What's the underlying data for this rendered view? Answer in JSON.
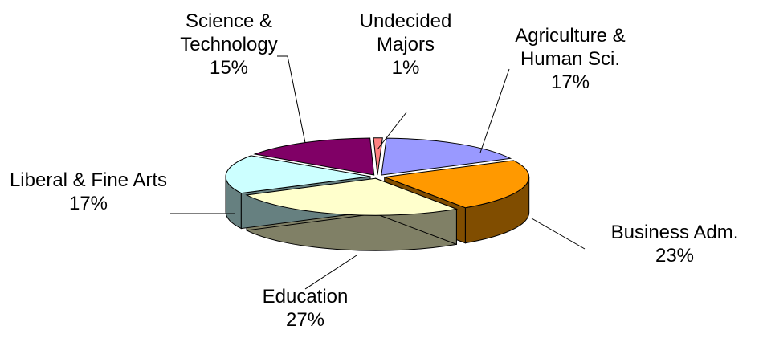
{
  "chart_data": {
    "type": "pie3d",
    "categories": [
      "Agriculture & Human Sci.",
      "Business Adm.",
      "Education",
      "Liberal & Fine Arts",
      "Science & Technology",
      "Undecided Majors"
    ],
    "values": [
      17,
      23,
      27,
      17,
      15,
      1
    ],
    "value_labels": [
      "17%",
      "23%",
      "27%",
      "17%",
      "15%",
      "1%"
    ],
    "colors": [
      "#9999ff",
      "#ff9900",
      "#ffffcc",
      "#ccffff",
      "#800066",
      "#ff8080"
    ]
  }
}
